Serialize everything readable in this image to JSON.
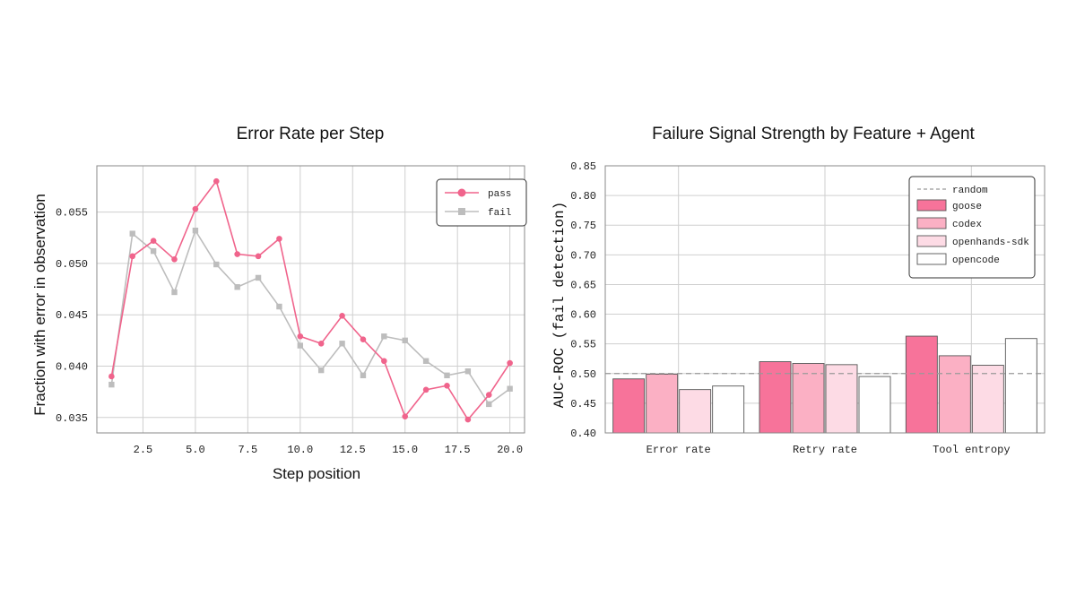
{
  "chart_data": [
    {
      "type": "line",
      "title": "Error Rate per Step",
      "xlabel": "Step position",
      "ylabel": "Fraction with error in observation",
      "xlim": [
        0.3,
        20.7
      ],
      "ylim": [
        0.0335,
        0.0595
      ],
      "x_ticks": [
        "2.5",
        "5.0",
        "7.5",
        "10.0",
        "12.5",
        "15.0",
        "17.5",
        "20.0"
      ],
      "y_ticks": [
        "0.035",
        "0.040",
        "0.045",
        "0.050",
        "0.055"
      ],
      "legend_position": "top-right",
      "grid": true,
      "x": [
        1,
        2,
        3,
        4,
        5,
        6,
        7,
        8,
        9,
        10,
        11,
        12,
        13,
        14,
        15,
        16,
        17,
        18,
        19,
        20
      ],
      "series": [
        {
          "name": "pass",
          "color": "#f0648c",
          "marker": "circle",
          "values": [
            0.039,
            0.0507,
            0.0522,
            0.0504,
            0.0553,
            0.058,
            0.0509,
            0.0507,
            0.0524,
            0.0429,
            0.0422,
            0.0449,
            0.0426,
            0.0405,
            0.0351,
            0.0377,
            0.0381,
            0.0348,
            0.0372,
            0.0403
          ]
        },
        {
          "name": "fail",
          "color": "#bdbdbd",
          "marker": "square",
          "values": [
            0.0382,
            0.0529,
            0.0512,
            0.0472,
            0.0532,
            0.0499,
            0.0477,
            0.0486,
            0.0458,
            0.042,
            0.0396,
            0.0422,
            0.0391,
            0.0429,
            0.0425,
            0.0405,
            0.0391,
            0.0395,
            0.0363,
            0.0378
          ]
        }
      ]
    },
    {
      "type": "bar",
      "title": "Failure Signal Strength by Feature + Agent",
      "xlabel": "",
      "ylabel": "AUC-ROC (fail detection)",
      "ylim": [
        0.4,
        0.85
      ],
      "y_ticks": [
        "0.40",
        "0.45",
        "0.50",
        "0.55",
        "0.60",
        "0.65",
        "0.70",
        "0.75",
        "0.80",
        "0.85"
      ],
      "categories": [
        "Error rate",
        "Retry rate",
        "Tool entropy"
      ],
      "legend_position": "top-right",
      "grid": true,
      "reference_line": {
        "name": "random",
        "value": 0.5,
        "style": "dashed",
        "color": "#999999"
      },
      "series": [
        {
          "name": "goose",
          "color": "#f7739a",
          "values": [
            0.491,
            0.52,
            0.563
          ]
        },
        {
          "name": "codex",
          "color": "#fbb0c4",
          "values": [
            0.499,
            0.517,
            0.53
          ]
        },
        {
          "name": "openhands-sdk",
          "color": "#fddbe5",
          "values": [
            0.473,
            0.515,
            0.514
          ]
        },
        {
          "name": "opencode",
          "color": "#ffffff",
          "values": [
            0.479,
            0.495,
            0.559
          ]
        }
      ]
    }
  ]
}
